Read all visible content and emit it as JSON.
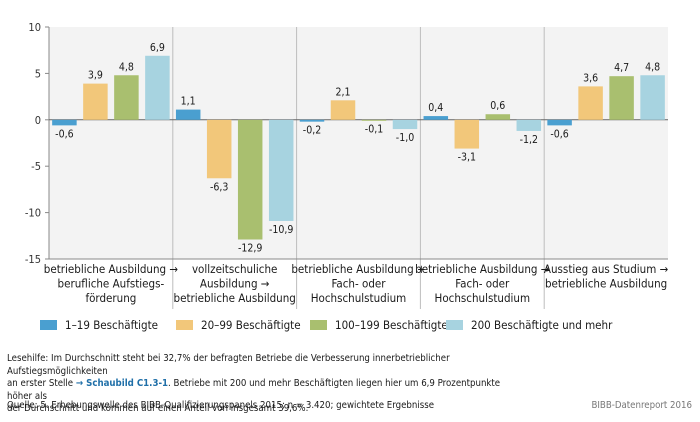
{
  "chart_data": {
    "type": "bar",
    "title": "",
    "xlabel": "",
    "ylabel": "",
    "ylim": [
      -15,
      10
    ],
    "yticks": [
      10,
      5,
      0,
      -5,
      -10,
      -15
    ],
    "grid": "vertical group separators",
    "legend_position": "bottom",
    "categories": [
      [
        "betriebliche Ausbildung →",
        "berufliche Aufstiegs-",
        "förderung"
      ],
      [
        "vollzeitschuliche",
        "Ausbildung →",
        "betriebliche Ausbildung"
      ],
      [
        "betriebliche Ausbildung +",
        "Fach- oder",
        "Hochschulstudium"
      ],
      [
        "betriebliche Ausbildung →",
        "Fach- oder",
        "Hochschulstudium"
      ],
      [
        "Ausstieg aus Studium →",
        "betriebliche Ausbildung"
      ]
    ],
    "series": [
      {
        "name": "1–19 Beschäftigte",
        "color": "#4a9fd0",
        "values": [
          -0.6,
          1.1,
          -0.2,
          0.4,
          -0.6
        ],
        "labels": [
          "-0,6",
          "1,1",
          "-0,2",
          "0,4",
          "-0,6"
        ]
      },
      {
        "name": "20–99 Beschäftigte",
        "color": "#f2c77a",
        "values": [
          3.9,
          -6.3,
          2.1,
          -3.1,
          3.6
        ],
        "labels": [
          "3,9",
          "-6,3",
          "2,1",
          "-3,1",
          "3,6"
        ]
      },
      {
        "name": "100–199 Beschäftigte",
        "color": "#a9bf6f",
        "values": [
          4.8,
          -12.9,
          -0.1,
          0.6,
          4.7
        ],
        "labels": [
          "4,8",
          "-12,9",
          "-0,1",
          "0,6",
          "4,7"
        ]
      },
      {
        "name": "200 Beschäftigte und mehr",
        "color": "#a7d3e0",
        "values": [
          6.9,
          -10.9,
          -1.0,
          -1.2,
          4.8
        ],
        "labels": [
          "6,9",
          "-10,9",
          "-1,0",
          "-1,2",
          "4,8"
        ]
      }
    ]
  },
  "footer": {
    "note_line1": "Lesehilfe: Im Durchschnitt steht bei 32,7% der befragten Betriebe die Verbesserung innerbetrieblicher Aufstiegsmöglichkeiten",
    "note_line2_pre": "an erster Stelle ",
    "note_ref": "→ Schaubild C1.3-1",
    "note_line2_post": ". Betriebe mit 200 und mehr Beschäftigten liegen hier um 6,9 Prozentpunkte höher als",
    "note_line3": "der Durchschnitt und kommen auf einen Anteil von insgesamt 39,6%.",
    "source": "Quelle: 5. Erhebungswelle des BIBB-Qualifizierungspanels 2015; n = 3.420; gewichtete Ergebnisse",
    "brand": "BIBB-Datenreport 2016"
  }
}
